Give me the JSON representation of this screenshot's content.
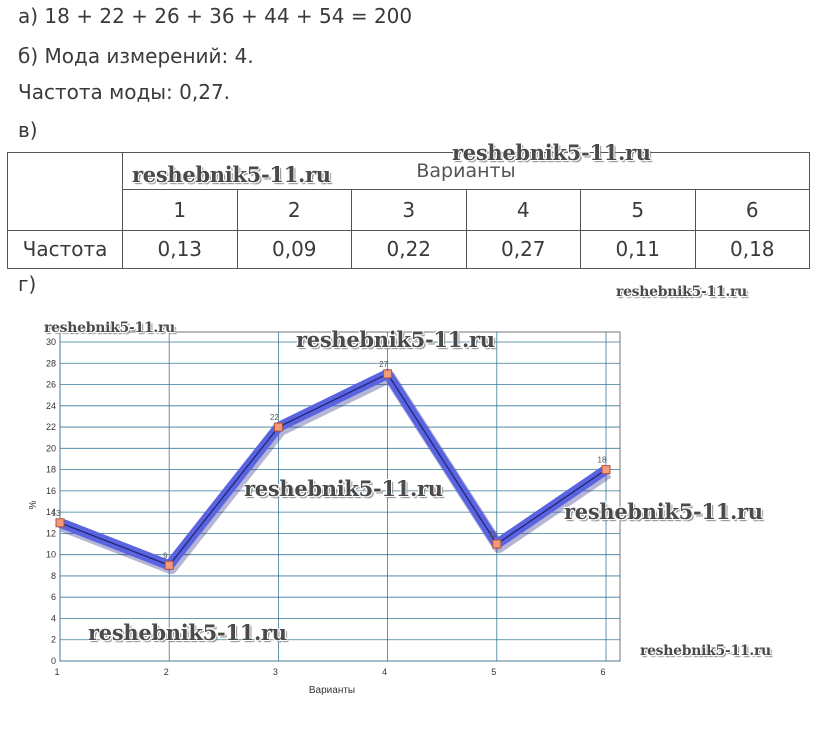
{
  "lines": {
    "a": "а) 18 + 22 + 26 + 36 + 44 + 54 = 200",
    "b": "б) Мода измерений:  4.",
    "c": "Частота моды:  0,27.",
    "d": "в)",
    "e": "г)"
  },
  "table": {
    "header": "Варианты",
    "row_label": "Частота",
    "variants": [
      "1",
      "2",
      "3",
      "4",
      "5",
      "6"
    ],
    "frequencies": [
      "0,13",
      "0,09",
      "0,22",
      "0,27",
      "0,11",
      "0,18"
    ]
  },
  "watermark": "reshebnik5-11.ru",
  "chart_data": {
    "type": "line",
    "x": [
      1,
      2,
      3,
      4,
      5,
      6
    ],
    "values": [
      13,
      9,
      22,
      27,
      11,
      18
    ],
    "data_labels": [
      "13",
      "9",
      "22",
      "27",
      "11",
      "18"
    ],
    "xlabel": "Варианты",
    "ylabel": "%",
    "ylim": [
      0,
      30
    ],
    "yticks": [
      "0",
      "2",
      "4",
      "6",
      "8",
      "10",
      "12",
      "14",
      "16",
      "18",
      "20",
      "22",
      "24",
      "26",
      "28",
      "30"
    ],
    "xticks": [
      "1",
      "2",
      "3",
      "4",
      "5",
      "6"
    ],
    "grid": true,
    "colors": {
      "line": "#5a63e0",
      "marker": "#f29a7a",
      "grid": "#3a7a9a"
    }
  }
}
